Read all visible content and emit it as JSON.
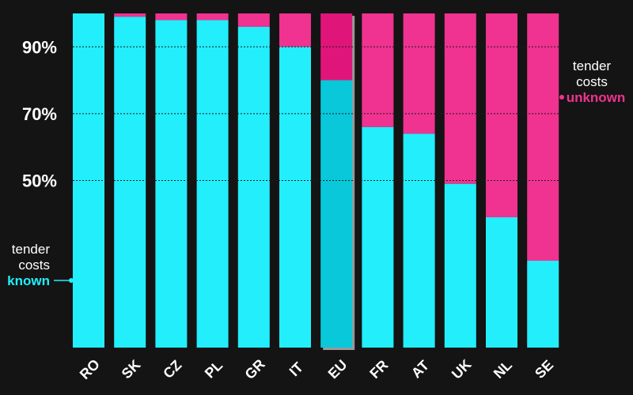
{
  "chart_data": {
    "type": "bar",
    "stacked": true,
    "orientation": "vertical",
    "categories": [
      "RO",
      "SK",
      "CZ",
      "PL",
      "GR",
      "IT",
      "EU",
      "FR",
      "AT",
      "UK",
      "NL",
      "SE"
    ],
    "highlighted_category": "EU",
    "series": [
      {
        "values": [
          100,
          99,
          98,
          98,
          96,
          90,
          80,
          66,
          64,
          49,
          39,
          26
        ]
      },
      {
        "values": [
          0,
          1,
          2,
          2,
          4,
          10,
          20,
          34,
          36,
          51,
          61,
          74
        ]
      }
    ],
    "title": "",
    "xlabel": "",
    "ylabel": "",
    "ylim": [
      0,
      100
    ],
    "y_ticks": [
      {
        "value": 50,
        "label": "50%"
      },
      {
        "value": 70,
        "label": "70%"
      },
      {
        "value": 90,
        "label": "90%"
      }
    ],
    "grid": "dotted horizontal at ticks",
    "annotations": {
      "known": {
        "line1": "tender",
        "line2": "costs",
        "line3": "known"
      },
      "unknown": {
        "line1": "tender",
        "line2": "costs",
        "line3": "unknown"
      }
    },
    "colors": {
      "known": "#22eefc",
      "unknown": "#f03290",
      "known_highlight": "#08c8da",
      "unknown_highlight": "#e0157a",
      "background": "#141414",
      "highlight_shadow": "#9a9a9a"
    }
  }
}
